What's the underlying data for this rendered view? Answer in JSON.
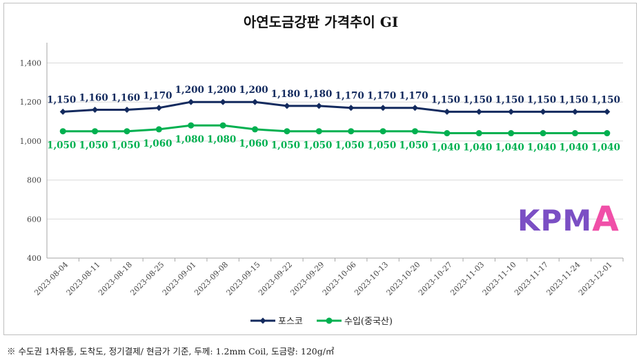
{
  "chart_data": {
    "type": "line",
    "title": "아연도금강판 가격추이 GI",
    "x": [
      "2023-08-04",
      "2023-08-11",
      "2023-08-18",
      "2023-08-25",
      "2023-09-01",
      "2023-09-08",
      "2023-09-15",
      "2023-09-22",
      "2023-09-29",
      "2023-10-06",
      "2023-10-13",
      "2023-10-20",
      "2023-10-27",
      "2023-11-03",
      "2023-11-10",
      "2023-11-17",
      "2023-11-24",
      "2023-12-01"
    ],
    "series": [
      {
        "name": "포스코",
        "color": "#132a5e",
        "marker": "diamond",
        "values": [
          1150,
          1160,
          1160,
          1170,
          1200,
          1200,
          1200,
          1180,
          1180,
          1170,
          1170,
          1170,
          1150,
          1150,
          1150,
          1150,
          1150,
          1150
        ],
        "labels": [
          "1,150",
          "1,160",
          "1,160",
          "1,170",
          "1,200",
          "1,200",
          "1,200",
          "1,180",
          "1,180",
          "1,170",
          "1,170",
          "1,170",
          "1,150",
          "1,150",
          "1,150",
          "1,150",
          "1,150",
          "1,150"
        ]
      },
      {
        "name": "수입(중국산)",
        "color": "#00b050",
        "marker": "circle",
        "values": [
          1050,
          1050,
          1050,
          1060,
          1080,
          1080,
          1060,
          1050,
          1050,
          1050,
          1050,
          1050,
          1040,
          1040,
          1040,
          1040,
          1040,
          1040
        ],
        "labels": [
          "1,050",
          "1,050",
          "1,050",
          "1,060",
          "1,080",
          "1,080",
          "1,060",
          "1,050",
          "1,050",
          "1,050",
          "1,050",
          "1,050",
          "1,040",
          "1,040",
          "1,040",
          "1,040",
          "1,040",
          "1,040"
        ]
      }
    ],
    "yticks": [
      "400",
      "600",
      "800",
      "1,000",
      "1,200",
      "1,400"
    ],
    "ylim": [
      400,
      1500
    ],
    "grid": true,
    "legend_position": "bottom"
  },
  "watermark": {
    "text": "KPMA",
    "color_main": "#7b4fc4",
    "color_accent": "#f04fa8"
  },
  "footnote": "※ 수도권 1차유통, 도착도, 정기결제/ 현금가 기준, 두께: 1.2mm Coil, 도금량: 120g/㎡"
}
